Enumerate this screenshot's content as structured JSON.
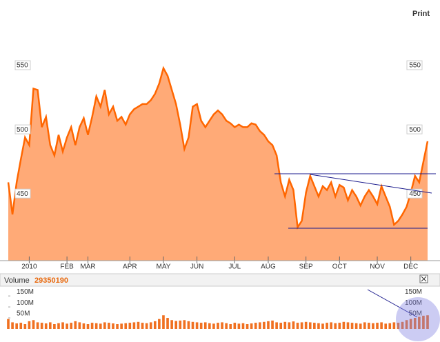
{
  "print_label": "Print",
  "chart_data": {
    "type": "area",
    "line_color": "#ff6600",
    "fill_color": "#ffaa77",
    "categories": [
      null,
      null,
      null,
      null,
      null,
      "2010",
      null,
      null,
      null,
      null,
      null,
      null,
      null,
      null,
      "FEB",
      null,
      null,
      null,
      null,
      "MAR",
      null,
      null,
      null,
      null,
      null,
      null,
      null,
      null,
      null,
      "APR",
      null,
      null,
      null,
      null,
      null,
      null,
      null,
      "MAY",
      null,
      null,
      null,
      null,
      null,
      null,
      null,
      "JUN",
      null,
      null,
      null,
      null,
      null,
      null,
      null,
      null,
      "JUL",
      null,
      null,
      null,
      null,
      null,
      null,
      null,
      "AUG",
      null,
      null,
      null,
      null,
      null,
      null,
      null,
      null,
      "SEP",
      null,
      null,
      null,
      null,
      null,
      null,
      null,
      "OCT",
      null,
      null,
      null,
      null,
      null,
      null,
      null,
      null,
      "NOV",
      null,
      null,
      null,
      null,
      null,
      null,
      null,
      "DEC",
      null,
      null,
      null,
      null
    ],
    "values": [
      459,
      434,
      459,
      477,
      494,
      488,
      532,
      531,
      502,
      510,
      488,
      480,
      496,
      483,
      494,
      502,
      488,
      502,
      509,
      496,
      510,
      526,
      518,
      531,
      512,
      518,
      507,
      510,
      504,
      512,
      516,
      518,
      520,
      520,
      523,
      528,
      536,
      548,
      542,
      531,
      520,
      504,
      485,
      494,
      518,
      520,
      507,
      502,
      507,
      512,
      515,
      512,
      507,
      505,
      502,
      504,
      502,
      502,
      505,
      504,
      499,
      496,
      491,
      488,
      480,
      459,
      448,
      461,
      453,
      424,
      429,
      451,
      464,
      456,
      448,
      456,
      453,
      459,
      448,
      457,
      455,
      445,
      453,
      448,
      441,
      448,
      453,
      448,
      442,
      456,
      448,
      440,
      426,
      429,
      434,
      440,
      451,
      464,
      459,
      475,
      491
    ],
    "ylim": [
      398,
      600
    ],
    "yticks": [
      450,
      500,
      550
    ],
    "grid": false
  },
  "volume": {
    "type": "bar",
    "title": "Volume",
    "readout": "29350190",
    "color": "#f07020",
    "values": [
      45,
      30,
      25,
      28,
      22,
      35,
      40,
      30,
      28,
      25,
      30,
      22,
      26,
      30,
      24,
      28,
      35,
      30,
      25,
      22,
      28,
      26,
      24,
      30,
      28,
      25,
      22,
      24,
      26,
      28,
      30,
      32,
      28,
      26,
      30,
      35,
      45,
      62,
      50,
      40,
      36,
      38,
      40,
      35,
      32,
      30,
      28,
      30,
      26,
      24,
      28,
      30,
      26,
      22,
      28,
      24,
      26,
      22,
      25,
      28,
      30,
      32,
      35,
      38,
      30,
      28,
      32,
      30,
      34,
      28,
      30,
      32,
      30,
      28,
      26,
      24,
      28,
      30,
      26,
      28,
      32,
      30,
      28,
      26,
      24,
      30,
      28,
      26,
      28,
      30,
      24,
      26,
      30,
      28,
      32,
      40,
      45,
      50,
      55,
      60,
      62
    ],
    "ylim": [
      0,
      160
    ],
    "yticks": [
      {
        "value": 50,
        "label": "50M"
      },
      {
        "value": 100,
        "label": "100M"
      },
      {
        "value": 150,
        "label": "150M"
      }
    ]
  }
}
